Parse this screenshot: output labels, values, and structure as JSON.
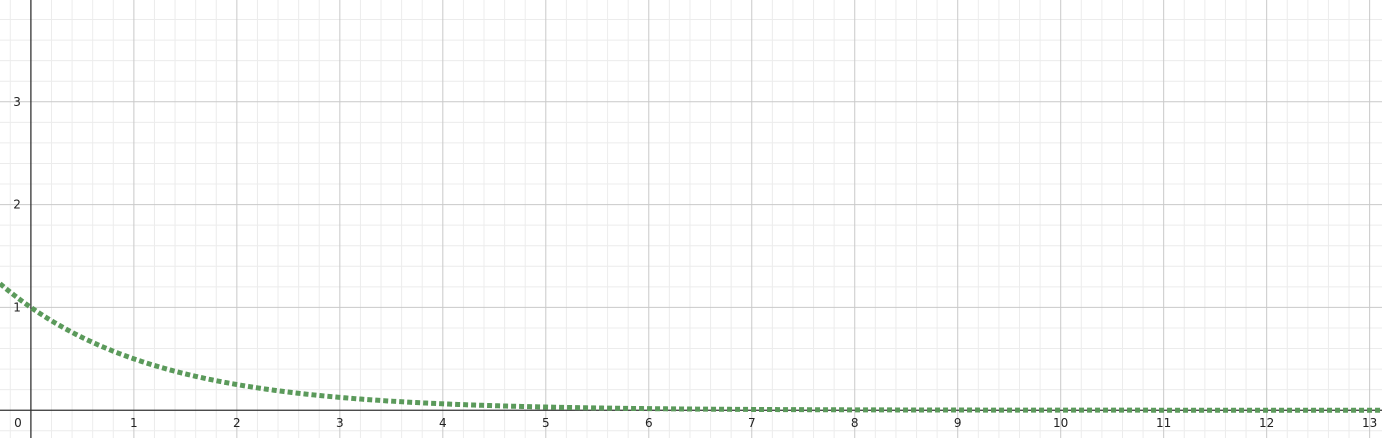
{
  "chart_data": {
    "type": "line",
    "title": "",
    "xlabel": "",
    "ylabel": "",
    "xlim": [
      -0.3,
      13.12
    ],
    "ylim": [
      -0.27,
      3.99
    ],
    "grid": true,
    "minor_grid": true,
    "x_ticks": [
      {
        "value": 0,
        "label": "0"
      },
      {
        "value": 1,
        "label": "1"
      },
      {
        "value": 2,
        "label": "2"
      },
      {
        "value": 3,
        "label": "3"
      },
      {
        "value": 4,
        "label": "4"
      },
      {
        "value": 5,
        "label": "5"
      },
      {
        "value": 6,
        "label": "6"
      },
      {
        "value": 7,
        "label": "7"
      },
      {
        "value": 8,
        "label": "8"
      },
      {
        "value": 9,
        "label": "9"
      },
      {
        "value": 10,
        "label": "10"
      },
      {
        "value": 11,
        "label": "11"
      },
      {
        "value": 12,
        "label": "12"
      },
      {
        "value": 13,
        "label": "13"
      }
    ],
    "y_ticks": [
      {
        "value": 1,
        "label": "1"
      },
      {
        "value": 2,
        "label": "2"
      },
      {
        "value": 3,
        "label": "3"
      }
    ],
    "series": [
      {
        "color": "#5b9a5b",
        "line_style": "dotted",
        "x": [
          -0.3,
          0,
          0.5,
          1,
          1.5,
          2,
          2.5,
          3,
          3.5,
          4,
          4.5,
          5,
          5.5,
          6,
          7,
          8,
          9,
          10,
          11,
          12,
          13.12
        ],
        "y": [
          1.23,
          1.0,
          0.71,
          0.5,
          0.35,
          0.25,
          0.18,
          0.125,
          0.088,
          0.0625,
          0.044,
          0.031,
          0.022,
          0.016,
          0.008,
          0.004,
          0.002,
          0.001,
          0.0005,
          0.0002,
          0.0001
        ]
      }
    ]
  },
  "colors": {
    "major_grid": "#c9c9c9",
    "minor_grid": "#ececec",
    "axis": "#333333",
    "curve": "#5b9a5b"
  }
}
